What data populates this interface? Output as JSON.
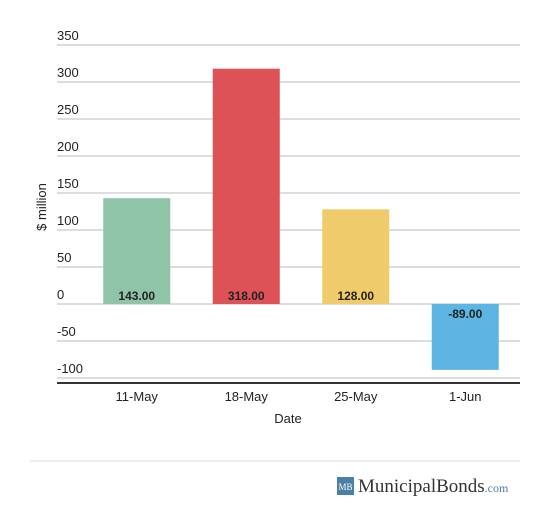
{
  "chart_data": {
    "type": "bar",
    "x_label": "Date",
    "y_label": "$ million",
    "categories": [
      "11-May",
      "18-May",
      "25-May",
      "1-Jun"
    ],
    "values": [
      143,
      318,
      128,
      -89
    ],
    "value_labels": [
      "143.00",
      "318.00",
      "128.00",
      "-89.00"
    ],
    "colors": [
      "#8fc4a8",
      "#dc5257",
      "#f0cb6b",
      "#5db5e4"
    ],
    "ylim": [
      -100,
      350
    ],
    "yticks": [
      350,
      300,
      250,
      200,
      150,
      100,
      50,
      0,
      -50,
      -100
    ],
    "grid": true
  },
  "footer": {
    "logo": "MB",
    "brand": "MunicipalBonds",
    "suffix": ".com"
  }
}
